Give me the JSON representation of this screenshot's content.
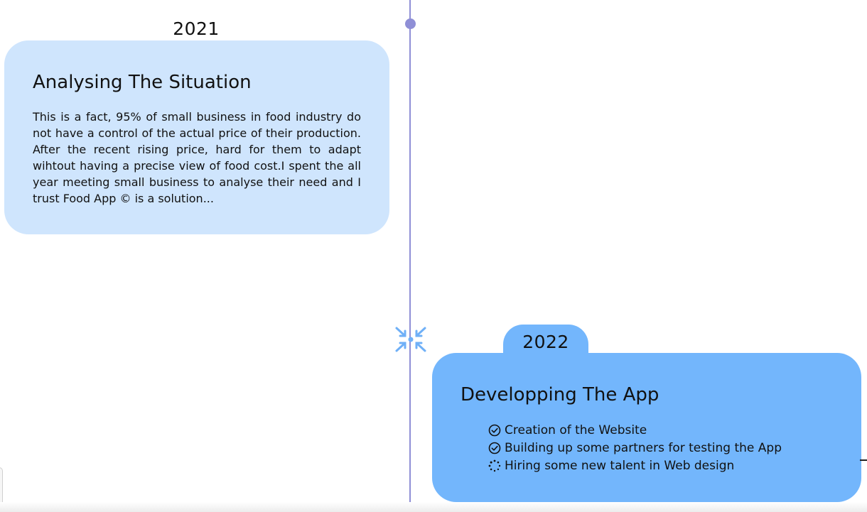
{
  "timeline": {
    "accent_color": "#8f8fd6",
    "collapse_icon": "collapse-arrows-icon"
  },
  "entries": [
    {
      "year": "2021",
      "title": "Analysing The Situation",
      "body": "This is a fact, 95% of small business in food industry do not have a control of the actual price of their production. After the recent rising price, hard for them to adapt wihtout having a precise view of food cost.I spent the all year meeting small business to analyse their need and I trust Food App © is a solution...",
      "background": "#cfe5fd"
    },
    {
      "year": "2022",
      "title": "Developping The App",
      "background": "#73b6fc",
      "tasks": [
        {
          "label": "Creation of the Website",
          "status": "done",
          "icon": "check-circle-icon"
        },
        {
          "label": "Building up some partners for testing the App",
          "status": "done",
          "icon": "check-circle-icon"
        },
        {
          "label": "Hiring some new talent in Web design",
          "status": "in-progress",
          "icon": "loading-spinner-icon"
        }
      ]
    }
  ]
}
